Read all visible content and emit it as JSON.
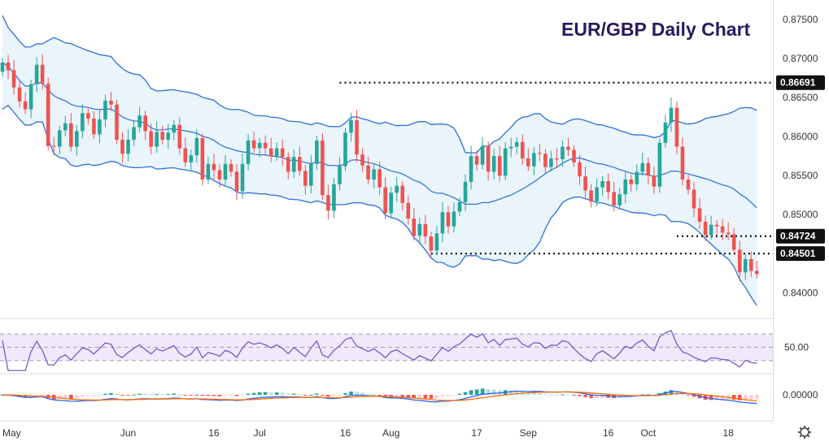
{
  "chart_data": {
    "type": "candlestick",
    "title": "EUR/GBP Daily Chart",
    "price_axis": {
      "range": [
        0.8367,
        0.8775
      ],
      "tick_values": [
        0.84,
        0.845,
        0.85,
        0.855,
        0.86,
        0.865,
        0.87,
        0.875
      ],
      "tick_labels": [
        "0.84000",
        "0.84500",
        "0.85000",
        "0.85500",
        "0.86000",
        "0.86500",
        "0.87000",
        "0.87500"
      ]
    },
    "time_axis": {
      "labels": [
        "May",
        "Jun",
        "16",
        "Jul",
        "16",
        "Aug",
        "17",
        "Sep",
        "16",
        "Oct",
        "18"
      ],
      "label_bar_index": [
        0,
        22,
        37,
        45,
        60,
        68,
        83,
        92,
        106,
        113,
        127
      ]
    },
    "price_levels": [
      {
        "value": 0.86691,
        "label": "0.86691",
        "from_bar": 59
      },
      {
        "value": 0.84724,
        "label": "0.84724",
        "from_bar": 118
      },
      {
        "value": 0.84501,
        "label": "0.84501",
        "from_bar": 75
      }
    ],
    "close": [
      0.8695,
      0.8685,
      0.8663,
      0.8645,
      0.8635,
      0.8667,
      0.8692,
      0.8668,
      0.8588,
      0.8587,
      0.8608,
      0.8617,
      0.8587,
      0.8607,
      0.863,
      0.8623,
      0.8603,
      0.8622,
      0.8646,
      0.8641,
      0.8596,
      0.8578,
      0.8596,
      0.8612,
      0.8627,
      0.8607,
      0.8587,
      0.8606,
      0.8596,
      0.8605,
      0.8615,
      0.8585,
      0.8567,
      0.8576,
      0.8598,
      0.8545,
      0.8565,
      0.8557,
      0.8545,
      0.8565,
      0.8555,
      0.853,
      0.8565,
      0.8595,
      0.8585,
      0.8592,
      0.8585,
      0.8575,
      0.8585,
      0.8574,
      0.8555,
      0.8574,
      0.8556,
      0.8537,
      0.8565,
      0.8595,
      0.8525,
      0.8505,
      0.8539,
      0.8562,
      0.8605,
      0.8621,
      0.8577,
      0.8563,
      0.8545,
      0.8558,
      0.8535,
      0.8502,
      0.8528,
      0.8537,
      0.8515,
      0.8495,
      0.8473,
      0.8488,
      0.8472,
      0.8454,
      0.8476,
      0.8503,
      0.8485,
      0.8504,
      0.8516,
      0.8542,
      0.8575,
      0.8564,
      0.8588,
      0.8555,
      0.8575,
      0.855,
      0.8585,
      0.8587,
      0.8593,
      0.8572,
      0.8562,
      0.8579,
      0.8578,
      0.8561,
      0.8572,
      0.8571,
      0.8587,
      0.8583,
      0.8567,
      0.8549,
      0.8531,
      0.8517,
      0.8535,
      0.8543,
      0.8529,
      0.8512,
      0.8526,
      0.8545,
      0.8539,
      0.8555,
      0.8566,
      0.855,
      0.8536,
      0.8592,
      0.8618,
      0.8637,
      0.8587,
      0.8545,
      0.8532,
      0.8508,
      0.8491,
      0.8474,
      0.8487,
      0.8485,
      0.8477,
      0.8475,
      0.8455,
      0.8426,
      0.8443,
      0.8428,
      0.8424
    ]
  }
}
